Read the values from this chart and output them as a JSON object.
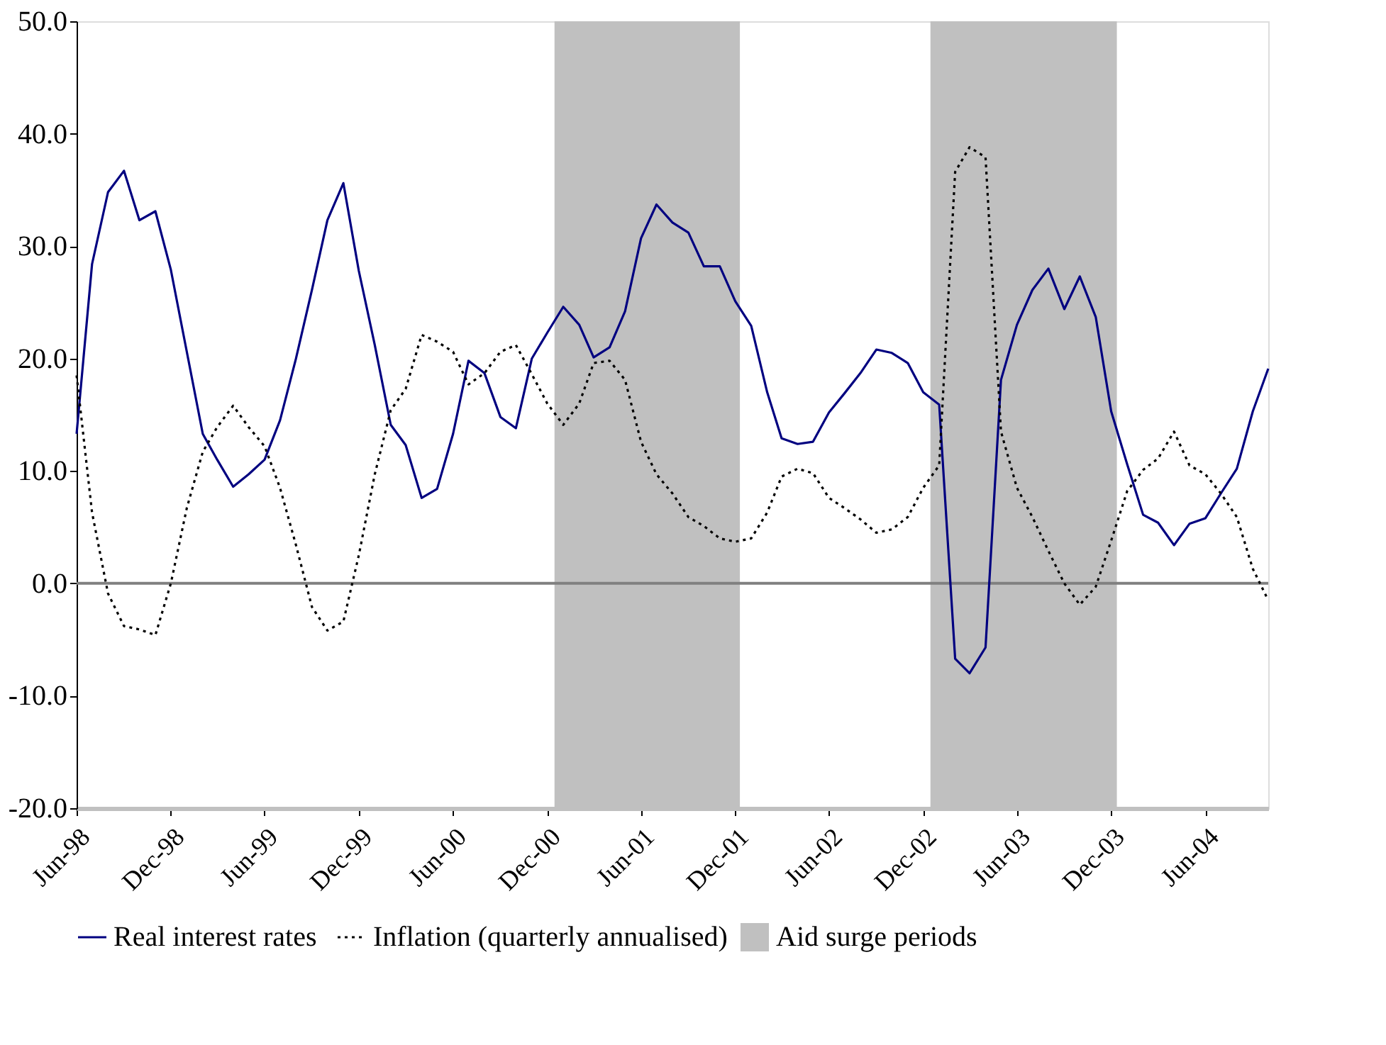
{
  "chart_data": {
    "type": "line",
    "x": [
      "1998-06",
      "1998-07",
      "1998-08",
      "1998-09",
      "1998-10",
      "1998-11",
      "1998-12",
      "1999-01",
      "1999-02",
      "1999-03",
      "1999-04",
      "1999-05",
      "1999-06",
      "1999-07",
      "1999-08",
      "1999-09",
      "1999-10",
      "1999-11",
      "1999-12",
      "2000-01",
      "2000-02",
      "2000-03",
      "2000-04",
      "2000-05",
      "2000-06",
      "2000-07",
      "2000-08",
      "2000-09",
      "2000-10",
      "2000-11",
      "2000-12",
      "2001-01",
      "2001-02",
      "2001-03",
      "2001-04",
      "2001-05",
      "2001-06",
      "2001-07",
      "2001-08",
      "2001-09",
      "2001-10",
      "2001-11",
      "2001-12",
      "2002-01",
      "2002-02",
      "2002-03",
      "2002-04",
      "2002-05",
      "2002-06",
      "2002-07",
      "2002-08",
      "2002-09",
      "2002-10",
      "2002-11",
      "2002-12",
      "2003-01",
      "2003-02",
      "2003-03",
      "2003-04",
      "2003-05",
      "2003-06",
      "2003-07",
      "2003-08",
      "2003-09",
      "2003-10",
      "2003-11",
      "2003-12",
      "2004-01",
      "2004-02",
      "2004-03",
      "2004-04",
      "2004-05",
      "2004-06",
      "2004-07",
      "2004-08",
      "2004-09",
      "2004-10"
    ],
    "series": [
      {
        "name": "Real interest rates",
        "color": "#000080",
        "line_style": "solid",
        "values": [
          13.3,
          28.4,
          34.8,
          36.7,
          32.3,
          33.1,
          27.9,
          20.6,
          13.3,
          11.0,
          8.6,
          9.7,
          11.0,
          14.5,
          20.0,
          26.1,
          32.3,
          35.6,
          27.8,
          21.2,
          14.1,
          12.3,
          7.6,
          8.4,
          13.3,
          19.8,
          18.7,
          14.8,
          13.8,
          20.0,
          22.3,
          24.6,
          23.0,
          20.1,
          21.0,
          24.2,
          30.7,
          33.7,
          32.1,
          31.2,
          28.2,
          28.2,
          25.1,
          22.9,
          17.0,
          12.9,
          12.4,
          12.6,
          15.2,
          16.9,
          18.7,
          20.8,
          20.5,
          19.6,
          17.0,
          15.9,
          -6.7,
          -8.0,
          -5.7,
          18.1,
          23.0,
          26.1,
          28.0,
          24.4,
          27.3,
          23.7,
          15.3,
          10.6,
          6.1,
          5.4,
          3.4,
          5.3,
          5.8,
          8.0,
          10.2,
          15.3,
          19.1
        ]
      },
      {
        "name": "Inflation (quarterly annualised)",
        "color": "#000000",
        "line_style": "dotted",
        "values": [
          18.5,
          6.3,
          -0.9,
          -3.8,
          -4.1,
          -4.6,
          0.0,
          6.7,
          11.7,
          13.9,
          15.8,
          13.9,
          12.2,
          8.5,
          3.4,
          -2.1,
          -4.2,
          -3.4,
          2.5,
          9.7,
          15.4,
          17.3,
          22.1,
          21.5,
          20.6,
          17.7,
          18.7,
          20.6,
          21.2,
          18.6,
          16.0,
          14.1,
          16.0,
          19.6,
          19.8,
          18.1,
          12.6,
          9.7,
          8.0,
          5.9,
          5.1,
          4.0,
          3.7,
          4.0,
          6.3,
          9.5,
          10.2,
          9.8,
          7.6,
          6.7,
          5.7,
          4.5,
          4.8,
          5.9,
          8.5,
          10.5,
          36.6,
          38.8,
          37.9,
          13.5,
          8.5,
          5.9,
          2.9,
          0.0,
          -1.9,
          -0.3,
          3.8,
          8.2,
          10.1,
          11.1,
          13.5,
          10.5,
          9.7,
          8.0,
          5.9,
          1.3,
          -1.5
        ]
      }
    ],
    "bands": [
      {
        "axis": "x",
        "from": "2000-12-15",
        "to": "2001-12-10",
        "label": "Aid surge periods",
        "color": "#c0c0c0"
      },
      {
        "axis": "x",
        "from": "2002-12-15",
        "to": "2003-12-12",
        "color": "#c0c0c0"
      }
    ],
    "ref_lines": [
      {
        "axis": "y",
        "value": 0,
        "color": "#808080"
      }
    ],
    "xlim": [
      "1998-06",
      "2004-10"
    ],
    "xticks": [
      {
        "value": "1998-06",
        "label": "Jun-98"
      },
      {
        "value": "1998-12",
        "label": "Dec-98"
      },
      {
        "value": "1999-06",
        "label": "Jun-99"
      },
      {
        "value": "1999-12",
        "label": "Dec-99"
      },
      {
        "value": "2000-06",
        "label": "Jun-00"
      },
      {
        "value": "2000-12",
        "label": "Dec-00"
      },
      {
        "value": "2001-06",
        "label": "Jun-01"
      },
      {
        "value": "2001-12",
        "label": "Dec-01"
      },
      {
        "value": "2002-06",
        "label": "Jun-02"
      },
      {
        "value": "2002-12",
        "label": "Dec-02"
      },
      {
        "value": "2003-06",
        "label": "Jun-03"
      },
      {
        "value": "2003-12",
        "label": "Dec-03"
      },
      {
        "value": "2004-06",
        "label": "Jun-04"
      }
    ],
    "ylim": [
      -20,
      50
    ],
    "yticks": [
      {
        "value": -20,
        "label": "-20.0"
      },
      {
        "value": -10,
        "label": "-10.0"
      },
      {
        "value": 0,
        "label": "0.0"
      },
      {
        "value": 10,
        "label": "10.0"
      },
      {
        "value": 20,
        "label": "20.0"
      },
      {
        "value": 30,
        "label": "30.0"
      },
      {
        "value": 40,
        "label": "40.0"
      },
      {
        "value": 50,
        "label": "50.0"
      }
    ],
    "grid": false,
    "legend": "bottom"
  }
}
